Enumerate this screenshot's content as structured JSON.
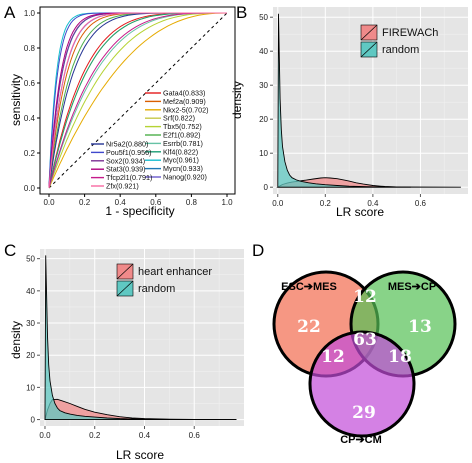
{
  "panels": {
    "a": "A",
    "b": "B",
    "c": "C",
    "d": "D"
  },
  "chart_data": [
    {
      "id": "A",
      "type": "line",
      "xlabel": "1 - specificity",
      "ylabel": "sensitivity",
      "xlim": [
        0,
        1
      ],
      "ylim": [
        0,
        1
      ],
      "xticks": [
        "0.0",
        "0.2",
        "0.4",
        "0.6",
        "0.8",
        "1.0"
      ],
      "yticks": [
        "0.0",
        "0.2",
        "0.4",
        "0.6",
        "0.8",
        "1.0"
      ],
      "diagonal": true,
      "legend_placement": "bottom-right",
      "series": [
        {
          "name": "Gata4(0.833)",
          "auc": 0.833,
          "color": "#e41a1c"
        },
        {
          "name": "Mef2a(0.909)",
          "auc": 0.909,
          "color": "#d95f02"
        },
        {
          "name": "Nkx2-5(0.702)",
          "auc": 0.702,
          "color": "#e6ab02"
        },
        {
          "name": "Srf(0.822)",
          "auc": 0.822,
          "color": "#c7c94a"
        },
        {
          "name": "Tbx5(0.752)",
          "auc": 0.752,
          "color": "#b5d334"
        },
        {
          "name": "E2f1(0.892)",
          "auc": 0.892,
          "color": "#4daf4a"
        },
        {
          "name": "Esrrb(0.781)",
          "auc": 0.781,
          "color": "#66c2a5"
        },
        {
          "name": "Klf4(0.822)",
          "auc": 0.822,
          "color": "#1b9e77"
        },
        {
          "name": "Myc(0.961)",
          "auc": 0.961,
          "color": "#17becf"
        },
        {
          "name": "Mycn(0.933)",
          "auc": 0.933,
          "color": "#1f78b4"
        },
        {
          "name": "Nanog(0.920)",
          "auc": 0.92,
          "color": "#6a5acd"
        },
        {
          "name": "Nr5a2(0.880)",
          "auc": 0.88,
          "color": "#253494"
        },
        {
          "name": "Pou5f1(0.956)",
          "auc": 0.956,
          "color": "#3f48cc"
        },
        {
          "name": "Sox2(0.934)",
          "auc": 0.934,
          "color": "#7b3294"
        },
        {
          "name": "Stat3(0.939)",
          "auc": 0.939,
          "color": "#ae017e"
        },
        {
          "name": "Tfcp2l1(0.791)",
          "auc": 0.791,
          "color": "#c51b8a"
        },
        {
          "name": "Zfx(0.921)",
          "auc": 0.921,
          "color": "#f768a1"
        }
      ]
    },
    {
      "id": "B",
      "type": "area",
      "xlabel": "LR score",
      "ylabel": "density",
      "xlim": [
        -0.02,
        0.8
      ],
      "ylim": [
        -2,
        53
      ],
      "xticks": [
        "0.0",
        "0.2",
        "0.4",
        "0.6"
      ],
      "yticks": [
        "0",
        "10",
        "20",
        "30",
        "40",
        "50"
      ],
      "legend_placement": "top-right",
      "series": [
        {
          "name": "FIREWACh",
          "color": "#f08a8a",
          "x": [
            0.0,
            0.01,
            0.02,
            0.04,
            0.06,
            0.08,
            0.1,
            0.12,
            0.15,
            0.18,
            0.2,
            0.22,
            0.25,
            0.28,
            0.3,
            0.33,
            0.36,
            0.4,
            0.45,
            0.5,
            0.56
          ],
          "y": [
            0,
            0.4,
            0.8,
            1.2,
            1.5,
            1.7,
            1.9,
            2.1,
            2.4,
            2.7,
            2.8,
            2.7,
            2.5,
            2.1,
            1.8,
            1.3,
            0.9,
            0.5,
            0.2,
            0.05,
            0
          ]
        },
        {
          "name": "random",
          "color": "#5fc8c2",
          "x": [
            0.0,
            0.003,
            0.006,
            0.01,
            0.015,
            0.02,
            0.03,
            0.04,
            0.05,
            0.06,
            0.08,
            0.1,
            0.13,
            0.16,
            0.2,
            0.25,
            0.3,
            0.4,
            0.5,
            0.77
          ],
          "y": [
            2,
            51,
            40,
            26,
            17,
            12,
            7.5,
            5,
            3.6,
            2.8,
            2.1,
            1.7,
            1.3,
            1.0,
            0.75,
            0.5,
            0.3,
            0.12,
            0.05,
            0
          ]
        }
      ]
    },
    {
      "id": "C",
      "type": "area",
      "xlabel": "LR score",
      "ylabel": "density",
      "xlim": [
        -0.02,
        0.8
      ],
      "ylim": [
        -2,
        53
      ],
      "xticks": [
        "0.0",
        "0.2",
        "0.4",
        "0.6"
      ],
      "yticks": [
        "0",
        "10",
        "20",
        "30",
        "40",
        "50"
      ],
      "legend_placement": "top-right",
      "series": [
        {
          "name": "heart enhancer",
          "color": "#f08a8a",
          "x": [
            0.0,
            0.01,
            0.02,
            0.03,
            0.05,
            0.07,
            0.1,
            0.13,
            0.16,
            0.2,
            0.25,
            0.3,
            0.35,
            0.4,
            0.5,
            0.6,
            0.77
          ],
          "y": [
            0,
            3,
            5,
            6.2,
            6.3,
            5.8,
            5,
            4.1,
            3.2,
            2.3,
            1.5,
            0.9,
            0.5,
            0.3,
            0.1,
            0.03,
            0
          ]
        },
        {
          "name": "random",
          "color": "#5fc8c2",
          "x": [
            0.0,
            0.003,
            0.006,
            0.01,
            0.015,
            0.02,
            0.03,
            0.04,
            0.05,
            0.06,
            0.08,
            0.1,
            0.13,
            0.16,
            0.2,
            0.25,
            0.3,
            0.4,
            0.5,
            0.77
          ],
          "y": [
            2,
            51,
            40,
            26,
            17,
            12,
            7.5,
            5,
            3.6,
            2.8,
            2.1,
            1.7,
            1.3,
            1.0,
            0.75,
            0.5,
            0.3,
            0.12,
            0.05,
            0
          ]
        }
      ]
    },
    {
      "id": "D",
      "type": "venn",
      "sets": [
        {
          "name": "ESC➔MES",
          "color": "#f26b4e"
        },
        {
          "name": "MES➔CP",
          "color": "#56c156"
        },
        {
          "name": "CP➔CM",
          "color": "#c24bd9"
        }
      ],
      "regions": [
        {
          "sets": [
            "ESC➔MES"
          ],
          "value": 22
        },
        {
          "sets": [
            "MES➔CP"
          ],
          "value": 13
        },
        {
          "sets": [
            "CP➔CM"
          ],
          "value": 29
        },
        {
          "sets": [
            "ESC➔MES",
            "MES➔CP"
          ],
          "value": 12
        },
        {
          "sets": [
            "ESC➔MES",
            "CP➔CM"
          ],
          "value": 12
        },
        {
          "sets": [
            "MES➔CP",
            "CP➔CM"
          ],
          "value": 18
        },
        {
          "sets": [
            "ESC➔MES",
            "MES➔CP",
            "CP➔CM"
          ],
          "value": 63
        }
      ]
    }
  ]
}
